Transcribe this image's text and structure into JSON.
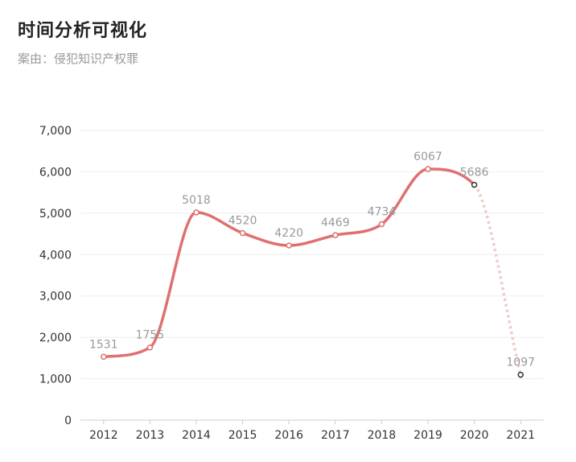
{
  "header": {
    "title": "时间分析可视化",
    "case_label": "案由：",
    "case_value": "侵犯知识产权罪"
  },
  "colors": {
    "line": "#e07070",
    "projected": "#f3c6c6",
    "grid": "#eeeeee",
    "last_point": "#333333"
  },
  "chart_data": {
    "type": "line",
    "categories": [
      "2012",
      "2013",
      "2014",
      "2015",
      "2016",
      "2017",
      "2018",
      "2019",
      "2020",
      "2021"
    ],
    "series": [
      {
        "values": [
          1531,
          1755,
          5018,
          4520,
          4220,
          4469,
          4734,
          6067,
          5686,
          1097
        ]
      }
    ],
    "data_labels": [
      "1531",
      "1755",
      "5018",
      "4520",
      "4220",
      "4469",
      "4734",
      "6067",
      "5686",
      "1097"
    ],
    "projected_last_segment": true,
    "yticks": [
      "0",
      "1,000",
      "2,000",
      "3,000",
      "4,000",
      "5,000",
      "6,000",
      "7,000"
    ],
    "ylim": [
      0,
      7000
    ],
    "grid": true,
    "smooth": true
  }
}
